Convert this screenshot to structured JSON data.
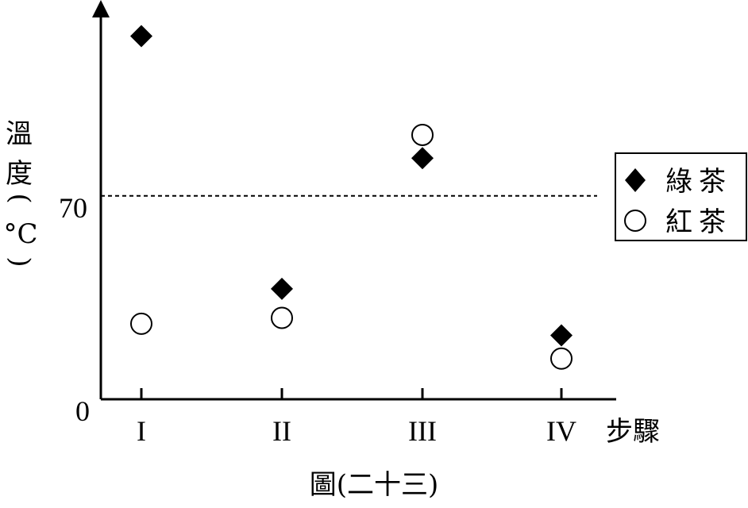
{
  "chart_data": {
    "type": "scatter",
    "categories": [
      "I",
      "II",
      "III",
      "IV"
    ],
    "xlabel": "步驟",
    "ylabel": {
      "lines": [
        "溫",
        "度",
        "(",
        "°C",
        ")"
      ]
    },
    "y_ticks": [
      "0",
      "70"
    ],
    "reference_line": {
      "y": 70,
      "style": "dotted"
    },
    "ylim": [
      0,
      130
    ],
    "series": [
      {
        "name": "綠茶",
        "marker": "filled-diamond",
        "color": "#000000",
        "values": [
          125,
          38,
          83,
          22
        ]
      },
      {
        "name": "紅茶",
        "marker": "open-circle",
        "color": "#000000",
        "values": [
          26,
          28,
          91,
          14
        ]
      }
    ],
    "legend_position": "right",
    "caption": "圖(二十三)"
  }
}
